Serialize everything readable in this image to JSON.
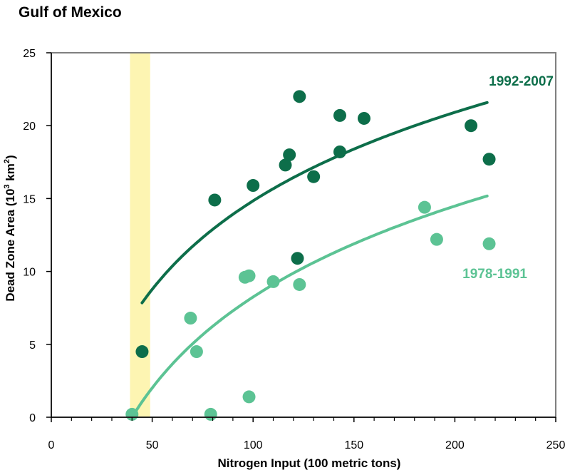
{
  "chart_data": {
    "type": "scatter",
    "title": "Gulf of Mexico",
    "xlabel": "Nitrogen Input (100 metric  tons)",
    "ylabel": "Dead Zone Area (10",
    "ylabel_sup1": "3",
    "ylabel_mid": " km",
    "ylabel_sup2": "2",
    "ylabel_end": ")",
    "xlim": [
      0,
      250
    ],
    "ylim": [
      0,
      25
    ],
    "x_ticks": [
      0,
      50,
      100,
      150,
      200,
      250
    ],
    "y_ticks": [
      0,
      5,
      10,
      15,
      20,
      25
    ],
    "x_tick_labels": [
      "0",
      "50",
      "100",
      "150",
      "200",
      "250"
    ],
    "y_tick_labels": [
      "0",
      "5",
      "10",
      "15",
      "20",
      "25"
    ],
    "grid": false,
    "highlight_band": {
      "x": [
        39,
        49
      ],
      "color": "#fdf5b2"
    },
    "series": [
      {
        "name": "1992-2007",
        "color": "#0d6e4a",
        "points": [
          {
            "x": 45,
            "y": 4.5
          },
          {
            "x": 81,
            "y": 14.9
          },
          {
            "x": 100,
            "y": 15.9
          },
          {
            "x": 116,
            "y": 17.3
          },
          {
            "x": 118,
            "y": 18.0
          },
          {
            "x": 122,
            "y": 10.9
          },
          {
            "x": 123,
            "y": 22.0
          },
          {
            "x": 130,
            "y": 16.5
          },
          {
            "x": 143,
            "y": 18.2
          },
          {
            "x": 143,
            "y": 20.7
          },
          {
            "x": 155,
            "y": 20.5
          },
          {
            "x": 208,
            "y": 20.0
          },
          {
            "x": 217,
            "y": 17.7
          }
        ],
        "fit": {
          "a": -25.5,
          "b": 8.76,
          "x_range": [
            45,
            216
          ]
        }
      },
      {
        "name": "1978-1991",
        "color": "#5cc394",
        "points": [
          {
            "x": 40,
            "y": 0.2
          },
          {
            "x": 69,
            "y": 6.8
          },
          {
            "x": 72,
            "y": 4.5
          },
          {
            "x": 79,
            "y": 0.2
          },
          {
            "x": 96,
            "y": 9.6
          },
          {
            "x": 98,
            "y": 9.7
          },
          {
            "x": 98,
            "y": 1.4
          },
          {
            "x": 110,
            "y": 9.3
          },
          {
            "x": 123,
            "y": 9.1
          },
          {
            "x": 185,
            "y": 14.4
          },
          {
            "x": 191,
            "y": 12.2
          },
          {
            "x": 217,
            "y": 11.9
          }
        ],
        "fit": {
          "a": -33.2,
          "b": 9.0,
          "x_range": [
            40,
            216
          ]
        }
      }
    ]
  }
}
